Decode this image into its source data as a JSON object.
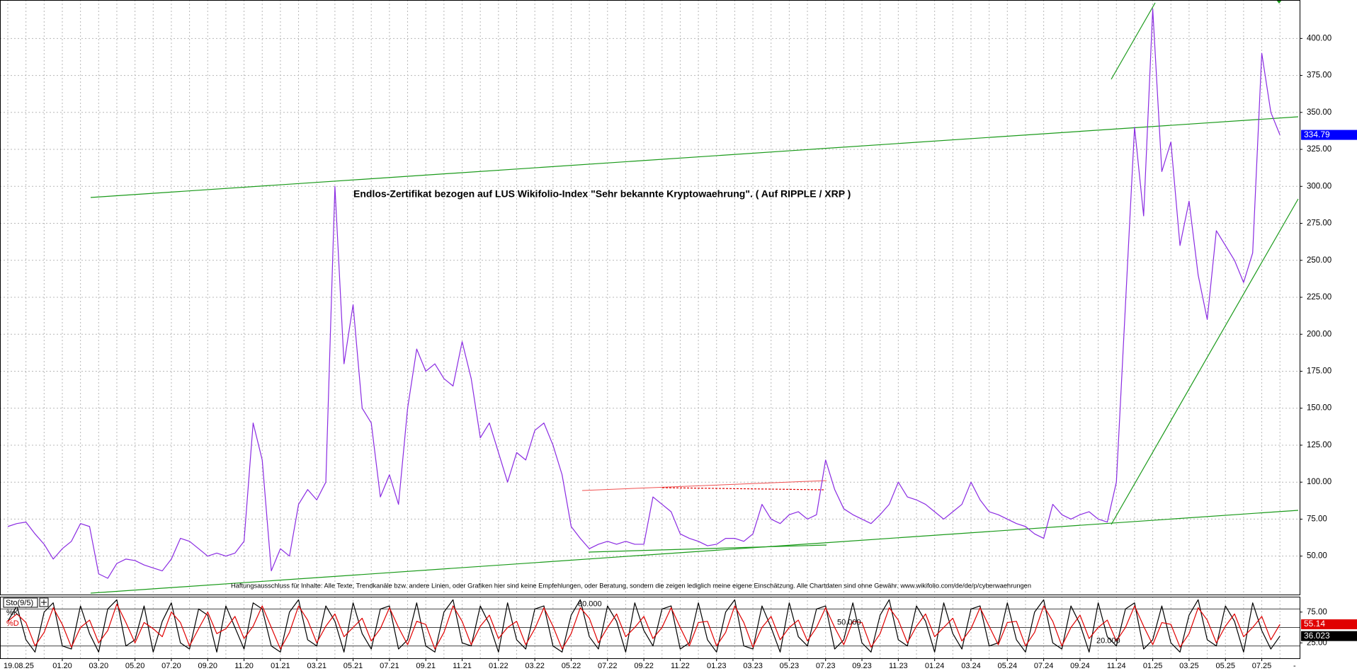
{
  "chart_data": {
    "type": "line",
    "date_label": "19.08.25",
    "annotation": "Endlos-Zertifikat bezogen auf LUS Wikifolio-Index \"Sehr bekannte Kryptowaehrung\". ( Auf RIPPLE / XRP )",
    "disclaimer": "Haftungsausschluss für Inhalte: Alle Texte, Trendkanäle bzw. andere Linien, oder Grafiken hier sind keine Empfehlungen, oder Beratung, sondern die zeigen lediglich meine eigene Einschätzung. Alle Chartdaten sind ohne Gewähr. www.wikifolio.com/de/de/p/cyberwaehrungen",
    "indicator_label": "Sto(9/5)",
    "categories": [
      null,
      null,
      null,
      null,
      null,
      null,
      "01.20",
      null,
      null,
      null,
      "03.20",
      null,
      null,
      null,
      "05.20",
      null,
      null,
      null,
      "07.20",
      null,
      null,
      null,
      "09.20",
      null,
      null,
      null,
      "11.20",
      null,
      null,
      null,
      "01.21",
      null,
      null,
      null,
      "03.21",
      null,
      null,
      null,
      "05.21",
      null,
      null,
      null,
      "07.21",
      null,
      null,
      null,
      "09.21",
      null,
      null,
      null,
      "11.21",
      null,
      null,
      null,
      "01.22",
      null,
      null,
      null,
      "03.22",
      null,
      null,
      null,
      "05.22",
      null,
      null,
      null,
      "07.22",
      null,
      null,
      null,
      "09.22",
      null,
      null,
      null,
      "11.22",
      null,
      null,
      null,
      "01.23",
      null,
      null,
      null,
      "03.23",
      null,
      null,
      null,
      "05.23",
      null,
      null,
      null,
      "07.23",
      null,
      null,
      null,
      "09.23",
      null,
      null,
      null,
      "11.23",
      null,
      null,
      null,
      "01.24",
      null,
      null,
      null,
      "03.24",
      null,
      null,
      null,
      "05.24",
      null,
      null,
      null,
      "07.24",
      null,
      null,
      null,
      "09.24",
      null,
      null,
      null,
      "11.24",
      null,
      null,
      null,
      "01.25",
      null,
      null,
      null,
      "03.25",
      null,
      null,
      null,
      "05.25",
      null,
      null,
      null,
      "07.25",
      null,
      null
    ],
    "series": [
      {
        "color": "#8a2be2",
        "values": [
          70,
          72,
          73,
          65,
          58,
          48,
          55,
          60,
          72,
          70,
          38,
          35,
          45,
          48,
          47,
          44,
          42,
          40,
          48,
          62,
          60,
          55,
          50,
          52,
          50,
          52,
          60,
          140,
          115,
          40,
          55,
          50,
          85,
          95,
          88,
          100,
          300,
          180,
          220,
          150,
          140,
          90,
          105,
          85,
          150,
          190,
          175,
          180,
          170,
          165,
          195,
          170,
          130,
          140,
          120,
          100,
          120,
          115,
          135,
          140,
          125,
          105,
          70,
          62,
          55,
          58,
          60,
          58,
          60,
          58,
          58,
          90,
          85,
          80,
          65,
          62,
          60,
          57,
          58,
          62,
          62,
          60,
          65,
          85,
          75,
          72,
          78,
          80,
          75,
          78,
          115,
          95,
          82,
          78,
          75,
          72,
          78,
          85,
          100,
          90,
          88,
          85,
          80,
          75,
          80,
          85,
          100,
          88,
          80,
          78,
          75,
          72,
          70,
          65,
          62,
          85,
          78,
          75,
          78,
          80,
          75,
          73,
          100,
          220,
          340,
          280,
          420,
          310,
          330,
          260,
          290,
          240,
          210,
          270,
          260,
          250,
          235,
          255,
          390,
          350,
          334.79
        ]
      },
      {
        "name": "%K",
        "color": "#000000",
        "axis": "y2",
        "values": [
          60,
          85,
          30,
          10,
          75,
          90,
          20,
          15,
          85,
          40,
          10,
          80,
          95,
          20,
          30,
          85,
          10,
          60,
          90,
          25,
          15,
          80,
          70,
          10,
          85,
          50,
          15,
          90,
          80,
          20,
          10,
          75,
          95,
          30,
          20,
          85,
          60,
          10,
          90,
          40,
          15,
          80,
          85,
          15,
          30,
          90,
          20,
          10,
          75,
          95,
          25,
          20,
          85,
          55,
          10,
          90,
          30,
          15,
          80,
          85,
          20,
          10,
          70,
          95,
          35,
          15,
          85,
          60,
          10,
          90,
          45,
          20,
          80,
          85,
          15,
          25,
          90,
          30,
          10,
          75,
          95,
          20,
          15,
          85,
          50,
          10,
          90,
          35,
          20,
          80,
          85,
          15,
          30,
          90,
          25,
          10,
          70,
          95,
          30,
          20,
          85,
          60,
          10,
          90,
          40,
          15,
          80,
          85,
          20,
          25,
          90,
          30,
          10,
          75,
          95,
          25,
          15,
          85,
          55,
          10,
          90,
          35,
          20,
          80,
          90,
          15,
          30,
          85,
          25,
          10,
          70,
          95,
          30,
          20,
          85,
          60,
          10,
          90,
          45,
          15,
          36.023
        ]
      },
      {
        "name": "%D",
        "color": "#e00000",
        "axis": "y2",
        "values": [
          60,
          72,
          58,
          20,
          42,
          82,
          55,
          18,
          50,
          62,
          25,
          45,
          88,
          58,
          25,
          58,
          48,
          35,
          75,
          58,
          20,
          48,
          75,
          40,
          48,
          68,
          32,
          52,
          85,
          50,
          15,
          42,
          85,
          62,
          25,
          52,
          72,
          35,
          50,
          65,
          28,
          48,
          82,
          50,
          22,
          60,
          55,
          15,
          42,
          85,
          60,
          22,
          52,
          70,
          32,
          50,
          60,
          22,
          48,
          82,
          52,
          15,
          40,
          82,
          65,
          25,
          50,
          72,
          35,
          50,
          68,
          32,
          50,
          82,
          50,
          20,
          58,
          60,
          20,
          42,
          85,
          58,
          18,
          50,
          68,
          30,
          50,
          62,
          28,
          50,
          82,
          50,
          22,
          60,
          58,
          18,
          40,
          82,
          62,
          25,
          52,
          72,
          35,
          50,
          65,
          28,
          48,
          82,
          52,
          22,
          58,
          60,
          20,
          42,
          85,
          60,
          20,
          50,
          70,
          32,
          50,
          62,
          28,
          50,
          85,
          52,
          22,
          58,
          55,
          18,
          40,
          82,
          62,
          25,
          52,
          72,
          35,
          50,
          68,
          30,
          55.14
        ]
      }
    ],
    "ylim": [
      24,
      426
    ],
    "yticks": [
      {
        "value": 50,
        "label": "50.00"
      },
      {
        "value": 75,
        "label": "75.00"
      },
      {
        "value": 100,
        "label": "100.00"
      },
      {
        "value": 125,
        "label": "125.00"
      },
      {
        "value": 150,
        "label": "150.00"
      },
      {
        "value": 175,
        "label": "175.00"
      },
      {
        "value": 200,
        "label": "200.00"
      },
      {
        "value": 225,
        "label": "225.00"
      },
      {
        "value": 250,
        "label": "250.00"
      },
      {
        "value": 275,
        "label": "275.00"
      },
      {
        "value": 300,
        "label": "300.00"
      },
      {
        "value": 325,
        "label": "325.00"
      },
      {
        "value": 350,
        "label": "350.00"
      },
      {
        "value": 375,
        "label": "375.00"
      },
      {
        "value": 400,
        "label": "400.00"
      }
    ],
    "y2lim": [
      0,
      100
    ],
    "y2ticks": [
      {
        "value": 75,
        "label": "75.00"
      },
      {
        "value": 25,
        "label": "25.00"
      }
    ],
    "levels": [
      {
        "value": 80,
        "label": "80.000"
      },
      {
        "value": 50,
        "label": "50.000"
      },
      {
        "value": 20,
        "label": "20.000"
      }
    ],
    "grid": true
  }
}
